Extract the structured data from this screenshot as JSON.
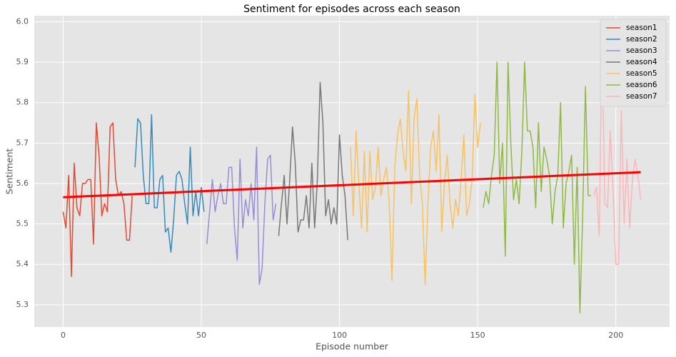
{
  "chart_data": {
    "type": "line",
    "title": "Sentiment for episodes across each season",
    "x_label": "Episode number",
    "y_label": "Sentiment",
    "xlim": [
      -10.45,
      219.45
    ],
    "ylim": [
      5.245,
      6.015
    ],
    "xticks": [
      0,
      50,
      100,
      150,
      200
    ],
    "yticks": [
      5.3,
      5.4,
      5.5,
      5.6,
      5.7,
      5.8,
      5.9,
      {
        "value": 6,
        "label": "6.0"
      }
    ],
    "grid": true,
    "legend": "upper right",
    "series": [
      {
        "name": "season1",
        "color": "#E24A33",
        "x": [
          0,
          1,
          2,
          3,
          4,
          5,
          6,
          7,
          8,
          9,
          10,
          11,
          12,
          13,
          14,
          15,
          16,
          17,
          18,
          19,
          20,
          21,
          22,
          23,
          24,
          25
        ],
        "values": [
          5.53,
          5.49,
          5.62,
          5.37,
          5.65,
          5.54,
          5.52,
          5.6,
          5.6,
          5.61,
          5.61,
          5.45,
          5.75,
          5.67,
          5.52,
          5.55,
          5.53,
          5.74,
          5.75,
          5.61,
          5.57,
          5.58,
          5.55,
          5.46,
          5.46,
          5.57
        ]
      },
      {
        "name": "season2",
        "color": "#348ABD",
        "x": [
          26,
          27,
          28,
          29,
          30,
          31,
          32,
          33,
          34,
          35,
          36,
          37,
          38,
          39,
          40,
          41,
          42,
          43,
          44,
          45,
          46,
          47,
          48,
          49,
          50,
          51
        ],
        "values": [
          5.64,
          5.76,
          5.75,
          5.62,
          5.55,
          5.55,
          5.77,
          5.54,
          5.54,
          5.61,
          5.62,
          5.48,
          5.49,
          5.43,
          5.51,
          5.62,
          5.63,
          5.61,
          5.55,
          5.5,
          5.69,
          5.52,
          5.58,
          5.52,
          5.59,
          5.53
        ]
      },
      {
        "name": "season3",
        "color": "#988ED5",
        "x": [
          52,
          53,
          54,
          55,
          56,
          57,
          58,
          59,
          60,
          61,
          62,
          63,
          64,
          65,
          66,
          67,
          68,
          69,
          70,
          71,
          72,
          73,
          74,
          75,
          76,
          77
        ],
        "values": [
          5.45,
          5.53,
          5.61,
          5.53,
          5.57,
          5.6,
          5.55,
          5.55,
          5.64,
          5.64,
          5.49,
          5.41,
          5.66,
          5.49,
          5.56,
          5.52,
          5.6,
          5.51,
          5.69,
          5.35,
          5.39,
          5.55,
          5.66,
          5.67,
          5.51,
          5.55
        ]
      },
      {
        "name": "season4",
        "color": "#777777",
        "x": [
          78,
          79,
          80,
          81,
          82,
          83,
          84,
          85,
          86,
          87,
          88,
          89,
          90,
          91,
          92,
          93,
          94,
          95,
          96,
          97,
          98,
          99,
          100,
          101,
          102,
          103
        ],
        "values": [
          5.47,
          5.55,
          5.62,
          5.5,
          5.61,
          5.74,
          5.65,
          5.48,
          5.51,
          5.51,
          5.57,
          5.49,
          5.65,
          5.49,
          5.61,
          5.85,
          5.75,
          5.52,
          5.56,
          5.5,
          5.54,
          5.5,
          5.72,
          5.62,
          5.57,
          5.46
        ]
      },
      {
        "name": "season5",
        "color": "#FBC15E",
        "x": [
          104,
          105,
          106,
          107,
          108,
          109,
          110,
          111,
          112,
          113,
          114,
          115,
          116,
          117,
          118,
          119,
          120,
          121,
          122,
          123,
          124,
          125,
          126,
          127,
          128,
          129,
          130,
          131,
          132,
          133,
          134,
          135,
          136,
          137,
          138,
          139,
          140,
          141,
          142,
          143,
          144,
          145,
          146,
          147,
          148,
          149,
          150,
          151
        ],
        "values": [
          5.69,
          5.52,
          5.73,
          5.6,
          5.49,
          5.68,
          5.48,
          5.68,
          5.56,
          5.59,
          5.69,
          5.57,
          5.61,
          5.64,
          5.55,
          5.36,
          5.64,
          5.72,
          5.76,
          5.68,
          5.63,
          5.83,
          5.55,
          5.76,
          5.81,
          5.62,
          5.55,
          5.35,
          5.55,
          5.69,
          5.73,
          5.63,
          5.77,
          5.48,
          5.6,
          5.67,
          5.55,
          5.49,
          5.56,
          5.52,
          5.61,
          5.72,
          5.52,
          5.55,
          5.61,
          5.82,
          5.69,
          5.75
        ]
      },
      {
        "name": "season6",
        "color": "#8EBA42",
        "x": [
          152,
          153,
          154,
          155,
          156,
          157,
          158,
          159,
          160,
          161,
          162,
          163,
          164,
          165,
          166,
          167,
          168,
          169,
          170,
          171,
          172,
          173,
          174,
          175,
          176,
          177,
          178,
          179,
          180,
          181,
          182,
          183,
          184,
          185,
          186,
          187,
          188,
          189,
          190,
          191
        ],
        "values": [
          5.54,
          5.58,
          5.55,
          5.62,
          5.67,
          5.9,
          5.6,
          5.7,
          5.42,
          5.9,
          5.7,
          5.56,
          5.61,
          5.55,
          5.68,
          5.9,
          5.73,
          5.73,
          5.69,
          5.54,
          5.75,
          5.58,
          5.69,
          5.66,
          5.62,
          5.5,
          5.58,
          5.62,
          5.8,
          5.49,
          5.6,
          5.63,
          5.67,
          5.4,
          5.64,
          5.28,
          5.52,
          5.84,
          5.57,
          5.57
        ]
      },
      {
        "name": "season7",
        "color": "#FFB5B8",
        "x": [
          192,
          193,
          194,
          195,
          196,
          197,
          198,
          199,
          200,
          201,
          202,
          203,
          204,
          205,
          206,
          207,
          208,
          209
        ],
        "values": [
          5.57,
          5.59,
          5.47,
          5.98,
          5.55,
          5.54,
          5.73,
          5.58,
          5.4,
          5.4,
          5.78,
          5.5,
          5.66,
          5.49,
          5.61,
          5.66,
          5.62,
          5.56
        ]
      }
    ],
    "trend": {
      "color": "#ff0000",
      "x": [
        0,
        209
      ],
      "values": [
        5.566,
        5.628
      ]
    }
  }
}
